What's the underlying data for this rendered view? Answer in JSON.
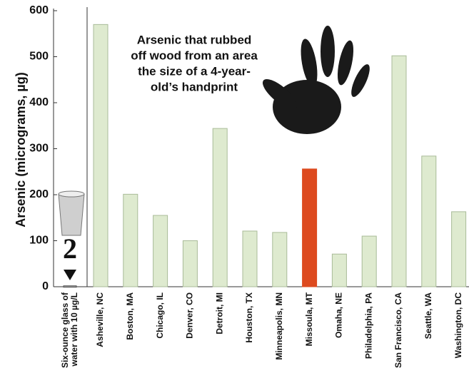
{
  "chart_data": {
    "type": "bar",
    "ylabel": "Arsenic (micrograms, µg)",
    "annotation": [
      "Arsenic that rubbed",
      "off wood from an area",
      "the size of a 4-year-",
      "old’s handprint"
    ],
    "categories": [
      [
        "Six-ounce glass of",
        "water with 10 µg/L"
      ],
      "Asheville, NC",
      "Boston, MA",
      "Chicago, IL",
      "Denver, CO",
      "Detroit, MI",
      "Houston, TX",
      "Minneapolis, MN",
      "Missoula, MT",
      "Omaha, NE",
      "Philadelphia, PA",
      "San Francisco, CA",
      "Seattle, WA",
      "Washington, DC"
    ],
    "values": [
      2,
      570,
      201,
      155,
      100,
      344,
      121,
      118,
      256,
      71,
      110,
      502,
      284,
      163
    ],
    "colors": [
      "#9a9a9a",
      "#deeacf",
      "#deeacf",
      "#deeacf",
      "#deeacf",
      "#deeacf",
      "#deeacf",
      "#deeacf",
      "#dd4a1f",
      "#deeacf",
      "#deeacf",
      "#deeacf",
      "#deeacf",
      "#deeacf"
    ],
    "ylim": [
      0,
      600
    ],
    "yticks": [
      0,
      100,
      200,
      300,
      400,
      500,
      600
    ]
  }
}
